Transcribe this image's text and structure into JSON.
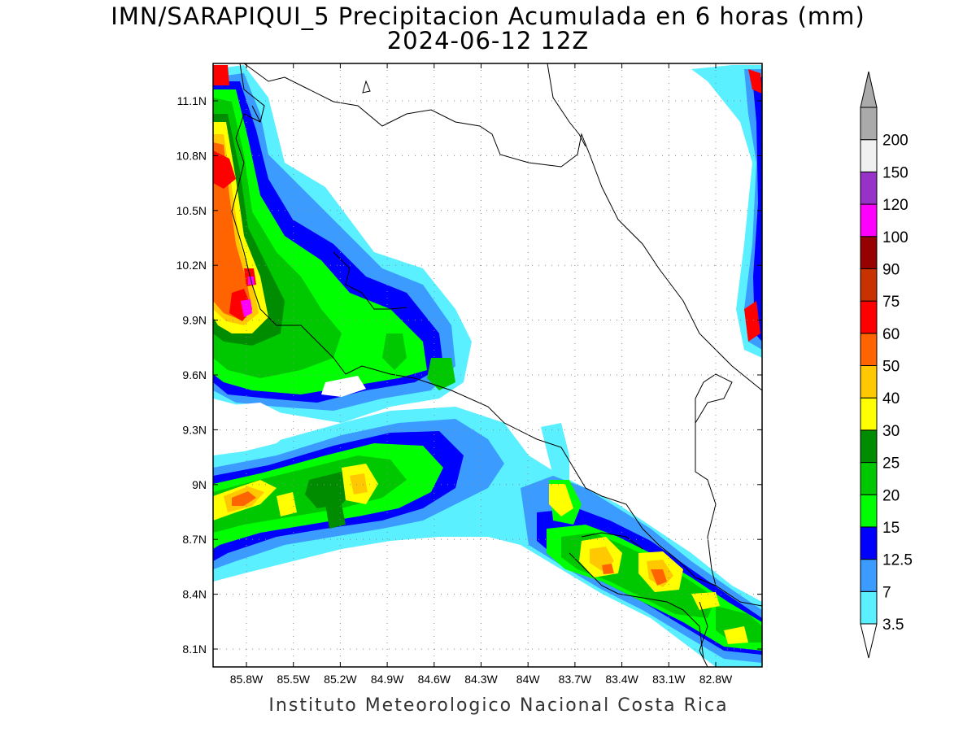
{
  "title": {
    "line1": "IMN/SARAPIQUI_5 Precipitacion Acumulada en 6 horas (mm)",
    "line2": "2024-06-12 12Z"
  },
  "footer": "Instituto Meteorologico Nacional Costa Rica",
  "map": {
    "lat_ticks": [
      "11.1N",
      "10.8N",
      "10.5N",
      "10.2N",
      "9.9N",
      "9.6N",
      "9.3N",
      "9N",
      "8.7N",
      "8.4N",
      "8.1N"
    ],
    "lon_ticks": [
      "85.8W",
      "85.5W",
      "85.2W",
      "84.9W",
      "84.6W",
      "84.3W",
      "84W",
      "83.7W",
      "83.4W",
      "83.1W",
      "82.8W"
    ],
    "grid": true,
    "grid_style": "dotted"
  },
  "colorbar": {
    "bins": [
      {
        "label": "3.5",
        "color": "#5af0ff"
      },
      {
        "label": "7",
        "color": "#3c9bff"
      },
      {
        "label": "12.5",
        "color": "#0000ff"
      },
      {
        "label": "15",
        "color": "#00ff00"
      },
      {
        "label": "20",
        "color": "#00c800"
      },
      {
        "label": "25",
        "color": "#008c00"
      },
      {
        "label": "30",
        "color": "#ffff00"
      },
      {
        "label": "40",
        "color": "#ffc800"
      },
      {
        "label": "50",
        "color": "#ff6400"
      },
      {
        "label": "60",
        "color": "#ff0000"
      },
      {
        "label": "75",
        "color": "#c83200"
      },
      {
        "label": "90",
        "color": "#960000"
      },
      {
        "label": "100",
        "color": "#ff00ff"
      },
      {
        "label": "120",
        "color": "#9632c8"
      },
      {
        "label": "150",
        "color": "#f0f0f0"
      },
      {
        "label": "200",
        "color": "#aaaaaa"
      }
    ],
    "below_arrow_color": "#ffffff",
    "above_arrow_color": "#aaaaaa"
  }
}
